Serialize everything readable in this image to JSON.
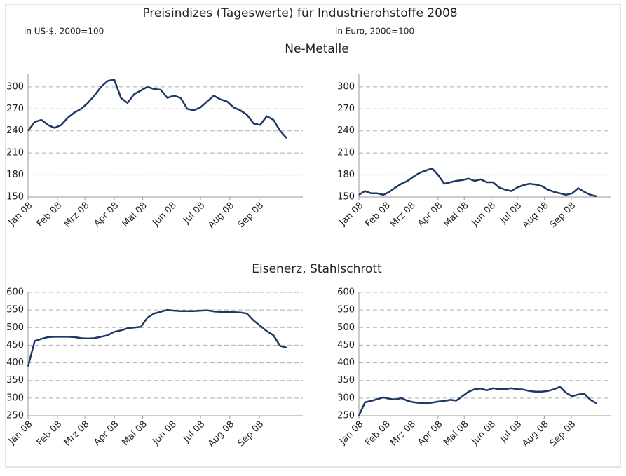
{
  "title": "Preisindizes (Tageswerte) für Industrierohstoffe 2008",
  "subtitles": [
    "in US-$, 2000=100",
    "in Euro, 2000=100"
  ],
  "sections": [
    "Ne-Metalle",
    "Eisenerz, Stahlschrott"
  ],
  "chart_data": [
    {
      "type": "line",
      "color": "#1f3864",
      "grid": true,
      "x": [
        0,
        7,
        14,
        21,
        28,
        35,
        42,
        49,
        56,
        63,
        70,
        77,
        84,
        91,
        98,
        105,
        112,
        119,
        126,
        133,
        140,
        147,
        154,
        161,
        168,
        175,
        182,
        189,
        196,
        203,
        210,
        217,
        224,
        231,
        238,
        245,
        252,
        259,
        266,
        273
      ],
      "values": [
        240,
        252,
        255,
        248,
        244,
        248,
        258,
        265,
        270,
        278,
        288,
        300,
        308,
        310,
        285,
        278,
        290,
        295,
        300,
        297,
        296,
        285,
        288,
        285,
        270,
        268,
        272,
        280,
        288,
        283,
        280,
        272,
        268,
        262,
        250,
        248,
        260,
        255,
        240,
        230
      ],
      "xlim": [
        0,
        290
      ],
      "xticks": [
        {
          "value": 0,
          "label": "Jan 08"
        },
        {
          "value": 31,
          "label": "Feb 08"
        },
        {
          "value": 60,
          "label": "Mrz 08"
        },
        {
          "value": 91,
          "label": "Apr 08"
        },
        {
          "value": 121,
          "label": "Mai 08"
        },
        {
          "value": 152,
          "label": "Jun 08"
        },
        {
          "value": 182,
          "label": "Jul 08"
        },
        {
          "value": 213,
          "label": "Aug 08"
        },
        {
          "value": 244,
          "label": "Sep 08"
        }
      ],
      "ylim": [
        150,
        318
      ],
      "yticks": [
        150,
        180,
        210,
        240,
        270,
        300
      ]
    },
    {
      "type": "line",
      "color": "#1f3864",
      "grid": true,
      "x": [
        0,
        7,
        14,
        21,
        28,
        35,
        42,
        49,
        56,
        63,
        70,
        77,
        84,
        91,
        98,
        105,
        112,
        119,
        126,
        133,
        140,
        147,
        154,
        161,
        168,
        175,
        182,
        189,
        196,
        203,
        210,
        217,
        224,
        231,
        238,
        245,
        252,
        259,
        266,
        273
      ],
      "values": [
        153,
        158,
        155,
        155,
        153,
        157,
        163,
        168,
        172,
        178,
        183,
        186,
        189,
        180,
        168,
        170,
        172,
        173,
        175,
        172,
        174,
        170,
        170,
        163,
        160,
        158,
        163,
        166,
        168,
        167,
        165,
        160,
        157,
        155,
        153,
        155,
        162,
        157,
        153,
        151
      ],
      "xlim": [
        0,
        290
      ],
      "xticks": [
        {
          "value": 0,
          "label": "Jan 08"
        },
        {
          "value": 31,
          "label": "Feb 08"
        },
        {
          "value": 60,
          "label": "Mrz 08"
        },
        {
          "value": 91,
          "label": "Apr 08"
        },
        {
          "value": 121,
          "label": "Mai 08"
        },
        {
          "value": 152,
          "label": "Jun 08"
        },
        {
          "value": 182,
          "label": "Jul 08"
        },
        {
          "value": 213,
          "label": "Aug 08"
        },
        {
          "value": 244,
          "label": "Sep 08"
        }
      ],
      "ylim": [
        150,
        318
      ],
      "yticks": [
        150,
        180,
        210,
        240,
        270,
        300
      ]
    },
    {
      "type": "line",
      "color": "#1f3864",
      "grid": true,
      "x": [
        0,
        7,
        14,
        21,
        28,
        35,
        42,
        49,
        56,
        63,
        70,
        77,
        84,
        91,
        98,
        105,
        112,
        119,
        126,
        133,
        140,
        147,
        154,
        161,
        168,
        175,
        182,
        189,
        196,
        203,
        210,
        217,
        224,
        231,
        238,
        245,
        252,
        259,
        266,
        273
      ],
      "values": [
        390,
        462,
        468,
        473,
        474,
        474,
        474,
        473,
        470,
        469,
        470,
        474,
        478,
        488,
        492,
        498,
        500,
        502,
        528,
        540,
        545,
        550,
        548,
        547,
        547,
        547,
        548,
        549,
        546,
        545,
        544,
        544,
        543,
        540,
        520,
        505,
        490,
        478,
        448,
        443
      ],
      "xlim": [
        0,
        290
      ],
      "xticks": [
        {
          "value": 0,
          "label": "Jan 08"
        },
        {
          "value": 31,
          "label": "Feb 08"
        },
        {
          "value": 60,
          "label": "Mrz 08"
        },
        {
          "value": 91,
          "label": "Apr 08"
        },
        {
          "value": 121,
          "label": "Mai 08"
        },
        {
          "value": 152,
          "label": "Jun 08"
        },
        {
          "value": 182,
          "label": "Jul 08"
        },
        {
          "value": 213,
          "label": "Aug 08"
        },
        {
          "value": 244,
          "label": "Sep 08"
        }
      ],
      "ylim": [
        250,
        600
      ],
      "yticks": [
        250,
        300,
        350,
        400,
        450,
        500,
        550,
        600
      ]
    },
    {
      "type": "line",
      "color": "#1f3864",
      "grid": true,
      "x": [
        0,
        7,
        14,
        21,
        28,
        35,
        42,
        49,
        56,
        63,
        70,
        77,
        84,
        91,
        98,
        105,
        112,
        119,
        126,
        133,
        140,
        147,
        154,
        161,
        168,
        175,
        182,
        189,
        196,
        203,
        210,
        217,
        224,
        231,
        238,
        245,
        252,
        259,
        266,
        273
      ],
      "values": [
        250,
        288,
        292,
        297,
        302,
        298,
        296,
        300,
        292,
        288,
        286,
        285,
        287,
        290,
        292,
        295,
        293,
        305,
        318,
        325,
        327,
        322,
        328,
        325,
        325,
        328,
        325,
        324,
        320,
        318,
        318,
        320,
        325,
        332,
        315,
        305,
        310,
        312,
        295,
        285
      ],
      "xlim": [
        0,
        290
      ],
      "xticks": [
        {
          "value": 0,
          "label": "Jan 08"
        },
        {
          "value": 31,
          "label": "Feb 08"
        },
        {
          "value": 60,
          "label": "Mrz 08"
        },
        {
          "value": 91,
          "label": "Apr 08"
        },
        {
          "value": 121,
          "label": "Mai 08"
        },
        {
          "value": 152,
          "label": "Jun 08"
        },
        {
          "value": 182,
          "label": "Jul 08"
        },
        {
          "value": 213,
          "label": "Aug 08"
        },
        {
          "value": 244,
          "label": "Sep 08"
        }
      ],
      "ylim": [
        250,
        600
      ],
      "yticks": [
        250,
        300,
        350,
        400,
        450,
        500,
        550,
        600
      ]
    }
  ]
}
